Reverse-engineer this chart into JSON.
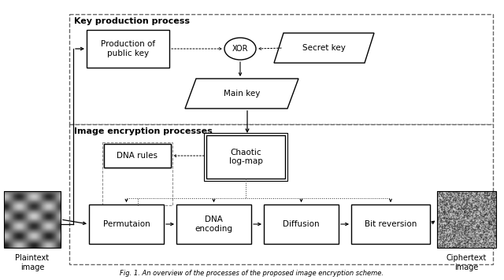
{
  "bg_color": "#ffffff",
  "kpp_label": "Key production process",
  "iep_label": "Image encryption processes",
  "caption": "Fig. 1. An overview of the processes of the proposed image encryption scheme.",
  "ppk_label": "Production of\npublic key",
  "xor_label": "XOR",
  "sk_label": "Secret key",
  "mk_label": "Main key",
  "clm_label": "Chaotic\nlog-map",
  "dnar_label": "DNA rules",
  "perm_label": "Permutaion",
  "dna_label": "DNA\nencoding",
  "diff_label": "Diffusion",
  "bitr_label": "Bit reversion",
  "plain_label": "Plaintext\nimage",
  "cipher_label": "Ciphertext\nimage"
}
